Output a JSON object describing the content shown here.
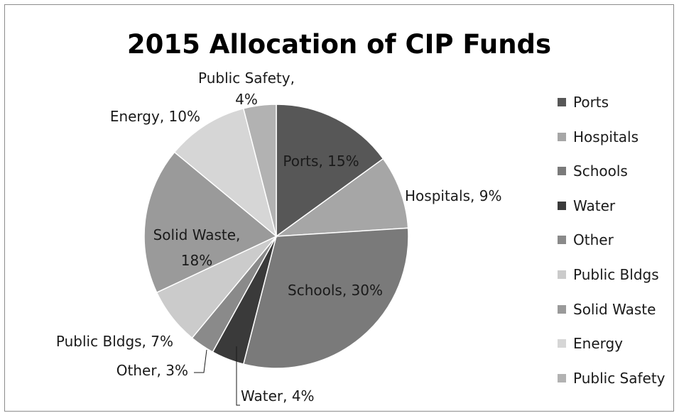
{
  "chart_data": {
    "type": "pie",
    "title": "2015 Allocation of CIP Funds",
    "legend_position": "right",
    "slices": [
      {
        "name": "Ports",
        "value": 15,
        "label": "Ports, 15%",
        "color": "#575757"
      },
      {
        "name": "Hospitals",
        "value": 9,
        "label": "Hospitals, 9%",
        "color": "#a6a6a6"
      },
      {
        "name": "Schools",
        "value": 30,
        "label": "Schools, 30%",
        "color": "#7a7a7a"
      },
      {
        "name": "Water",
        "value": 4,
        "label": "Water, 4%",
        "color": "#3a3a3a"
      },
      {
        "name": "Other",
        "value": 3,
        "label": "Other, 3%",
        "color": "#8a8a8a"
      },
      {
        "name": "Public Bldgs",
        "value": 7,
        "label": "Public Bldgs, 7%",
        "color": "#cbcbcb"
      },
      {
        "name": "Solid Waste",
        "value": 18,
        "label": "Solid Waste, 18%",
        "color": "#9a9a9a"
      },
      {
        "name": "Energy",
        "value": 10,
        "label": "Energy, 10%",
        "color": "#d6d6d6"
      },
      {
        "name": "Public Safety",
        "value": 4,
        "label": "Public Safety, 4%",
        "color": "#b2b2b2"
      }
    ]
  }
}
